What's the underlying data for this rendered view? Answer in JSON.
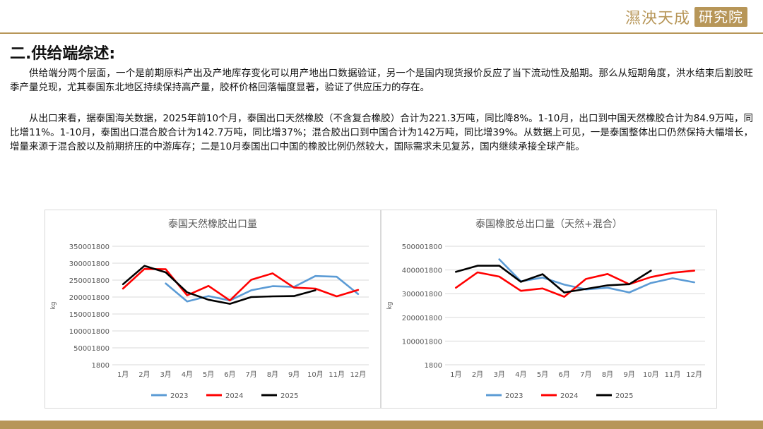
{
  "logo": {
    "text_main": "濕泱天成",
    "text_box": "研究院"
  },
  "heading": "二.供给端综述:",
  "paragraphs": [
    "供给端分两个层面，一个是前期原料产出及产地库存变化可以用产地出口数据验证，另一个是国内现货报价反应了当下流动性及船期。那么从短期角度，洪水结束后割胶旺季产量兑现，尤其泰国东北地区持续保持高产量，胶杯价格回落幅度显著，验证了供应压力的存在。",
    "从出口来看，据泰国海关数据，2025年前10个月，泰国出口天然橡胶（不含复合橡胶）合计为221.3万吨，同比降8%。1-10月，出口到中国天然橡胶合计为84.9万吨，同比增11%。1-10月，泰国出口混合胶合计为142.7万吨，同比增37%；混合胶出口到中国合计为142万吨，同比增39%。从数据上可见，一是泰国整体出口仍然保持大幅增长，增量来源于混合胶以及前期挤压的中游库存；二是10月泰国出口中国的橡胶比例仍然较大，国际需求未见复苏，国内继续承接全球产能。"
  ],
  "chart_data": [
    {
      "type": "line",
      "title": "泰国天然橡胶出口量",
      "ylabel": "kg",
      "categories": [
        "1月",
        "2月",
        "3月",
        "4月",
        "5月",
        "6月",
        "7月",
        "8月",
        "9月",
        "10月",
        "11月",
        "12月"
      ],
      "yticks": [
        "1800",
        "50001800",
        "100001800",
        "150001800",
        "200001800",
        "250001800",
        "300001800",
        "350001800"
      ],
      "ylim": [
        1800,
        350001800
      ],
      "series": [
        {
          "name": "2023",
          "color": "#5b9bd5",
          "values": [
            null,
            null,
            240001800,
            187001800,
            203001800,
            190001800,
            220001800,
            232001800,
            230001800,
            262001800,
            260001800,
            209001800
          ]
        },
        {
          "name": "2024",
          "color": "#ff0000",
          "values": [
            225001800,
            283001800,
            282001800,
            205001800,
            233001800,
            190001800,
            251001800,
            270001800,
            228001800,
            225001800,
            202001800,
            221001800
          ]
        },
        {
          "name": "2025",
          "color": "#000000",
          "values": [
            238001800,
            292001800,
            273001800,
            214001800,
            192001800,
            180001800,
            200001800,
            202001800,
            203001800,
            220001800,
            null,
            null
          ]
        }
      ],
      "grid": true,
      "legend": "bottom"
    },
    {
      "type": "line",
      "title": "泰国橡胶总出口量（天然+混合）",
      "ylabel": "kg",
      "categories": [
        "1月",
        "2月",
        "3月",
        "4月",
        "5月",
        "6月",
        "7月",
        "8月",
        "9月",
        "10月",
        "11月",
        "12月"
      ],
      "yticks": [
        "1800",
        "100001800",
        "200001800",
        "300001800",
        "400001800",
        "500001800"
      ],
      "ylim": [
        1800,
        500001800
      ],
      "series": [
        {
          "name": "2023",
          "color": "#5b9bd5",
          "values": [
            null,
            null,
            445001800,
            352001800,
            368001800,
            338001800,
            318001800,
            325001800,
            305001800,
            345001800,
            365001800,
            348001800
          ]
        },
        {
          "name": "2024",
          "color": "#ff0000",
          "values": [
            325001800,
            390001800,
            372001800,
            312001800,
            322001800,
            287001800,
            362001800,
            383001800,
            340001800,
            370001800,
            388001800,
            397001800
          ]
        },
        {
          "name": "2025",
          "color": "#000000",
          "values": [
            392001800,
            418001800,
            418001800,
            350001800,
            382001800,
            305001800,
            320001800,
            335001800,
            340001800,
            397001800,
            null,
            null
          ]
        }
      ],
      "grid": true,
      "legend": "bottom"
    }
  ]
}
